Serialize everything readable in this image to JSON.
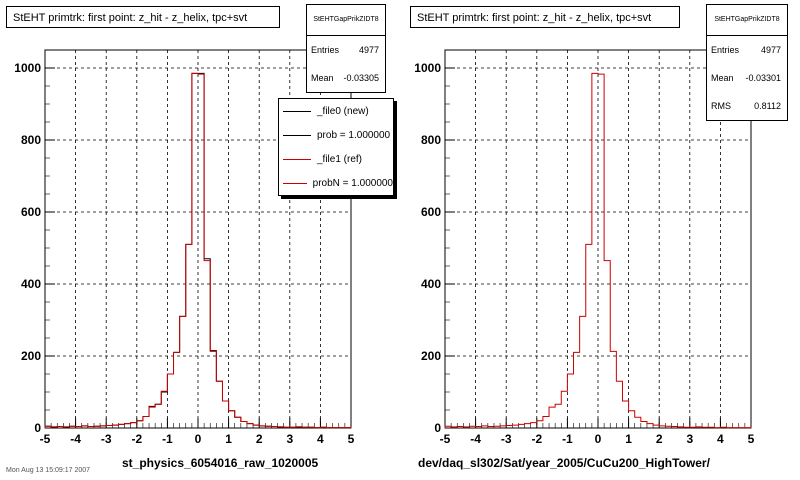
{
  "footer": "Mon Aug 13 15:09:17 2007",
  "legend": [
    {
      "label": "_file0 (new)",
      "color": "#000000"
    },
    {
      "label": "prob = 1.000000",
      "color": "#000000"
    },
    {
      "label": "_file1 (ref)",
      "color": "#cc0000"
    },
    {
      "label": "probN = 1.000000",
      "color": "#cc0000"
    }
  ],
  "chart_data": [
    {
      "type": "bar",
      "title": "StEHT primtrk: first point: z_hit - z_helix, tpc+svt",
      "xlabel": "st_physics_6054016_raw_1020005",
      "xlim": [
        -5,
        5
      ],
      "ylim": [
        0,
        1050
      ],
      "xticks": [
        -5,
        -4,
        -3,
        -2,
        -1,
        0,
        1,
        2,
        3,
        4,
        5
      ],
      "yticks": [
        0,
        200,
        400,
        600,
        800,
        1000
      ],
      "grid": true,
      "legend_position": "top-right",
      "stats": {
        "name": "StEHTGapPrikZIDT8",
        "rows": [
          {
            "label": "Entries",
            "value": "4977"
          },
          {
            "label": "Mean",
            "value": "-0.03305"
          }
        ]
      },
      "bin_edges_from": -5,
      "bin_width": 0.2,
      "series": [
        {
          "name": "_file0 (new)",
          "color": "#000000",
          "values": [
            5,
            3,
            4,
            3,
            5,
            4,
            6,
            4,
            5,
            6,
            7,
            8,
            10,
            12,
            15,
            20,
            32,
            60,
            66,
            100,
            150,
            210,
            310,
            510,
            985,
            985,
            470,
            215,
            130,
            75,
            48,
            30,
            18,
            12,
            8,
            6,
            5,
            4,
            3,
            2,
            2,
            3,
            2,
            2,
            1,
            2,
            1,
            1,
            1,
            1
          ]
        },
        {
          "name": "_file1 (ref)",
          "color": "#cc0000",
          "values": [
            5,
            3,
            4,
            3,
            5,
            4,
            6,
            4,
            5,
            6,
            7,
            8,
            10,
            12,
            15,
            20,
            32,
            58,
            66,
            102,
            150,
            210,
            310,
            510,
            985,
            983,
            465,
            213,
            130,
            75,
            48,
            30,
            18,
            12,
            8,
            6,
            5,
            4,
            3,
            2,
            2,
            3,
            2,
            2,
            1,
            2,
            1,
            1,
            1,
            1
          ]
        }
      ]
    },
    {
      "type": "bar",
      "title": "StEHT primtrk: first point: z_hit - z_helix, tpc+svt",
      "xlabel": "dev/daq_sl302/Sat/year_2005/CuCu200_HighTower/",
      "xlim": [
        -5,
        5
      ],
      "ylim": [
        0,
        1050
      ],
      "xticks": [
        -5,
        -4,
        -3,
        -2,
        -1,
        0,
        1,
        2,
        3,
        4,
        5
      ],
      "yticks": [
        0,
        200,
        400,
        600,
        800,
        1000
      ],
      "grid": true,
      "stats": {
        "name": "StEHTGapPrikZIDT8",
        "rows": [
          {
            "label": "Entries",
            "value": "4977"
          },
          {
            "label": "Mean",
            "value": "-0.03301"
          },
          {
            "label": "RMS",
            "value": "0.8112"
          }
        ]
      },
      "bin_edges_from": -5,
      "bin_width": 0.2,
      "series": [
        {
          "name": "_file1 (ref)",
          "color": "#cc0000",
          "values": [
            5,
            3,
            4,
            3,
            5,
            4,
            6,
            4,
            5,
            6,
            7,
            8,
            10,
            12,
            15,
            20,
            32,
            58,
            66,
            102,
            150,
            210,
            310,
            510,
            985,
            983,
            465,
            213,
            130,
            75,
            48,
            30,
            18,
            12,
            8,
            6,
            5,
            4,
            3,
            2,
            2,
            3,
            2,
            2,
            1,
            2,
            1,
            1,
            1,
            1
          ]
        }
      ]
    }
  ]
}
